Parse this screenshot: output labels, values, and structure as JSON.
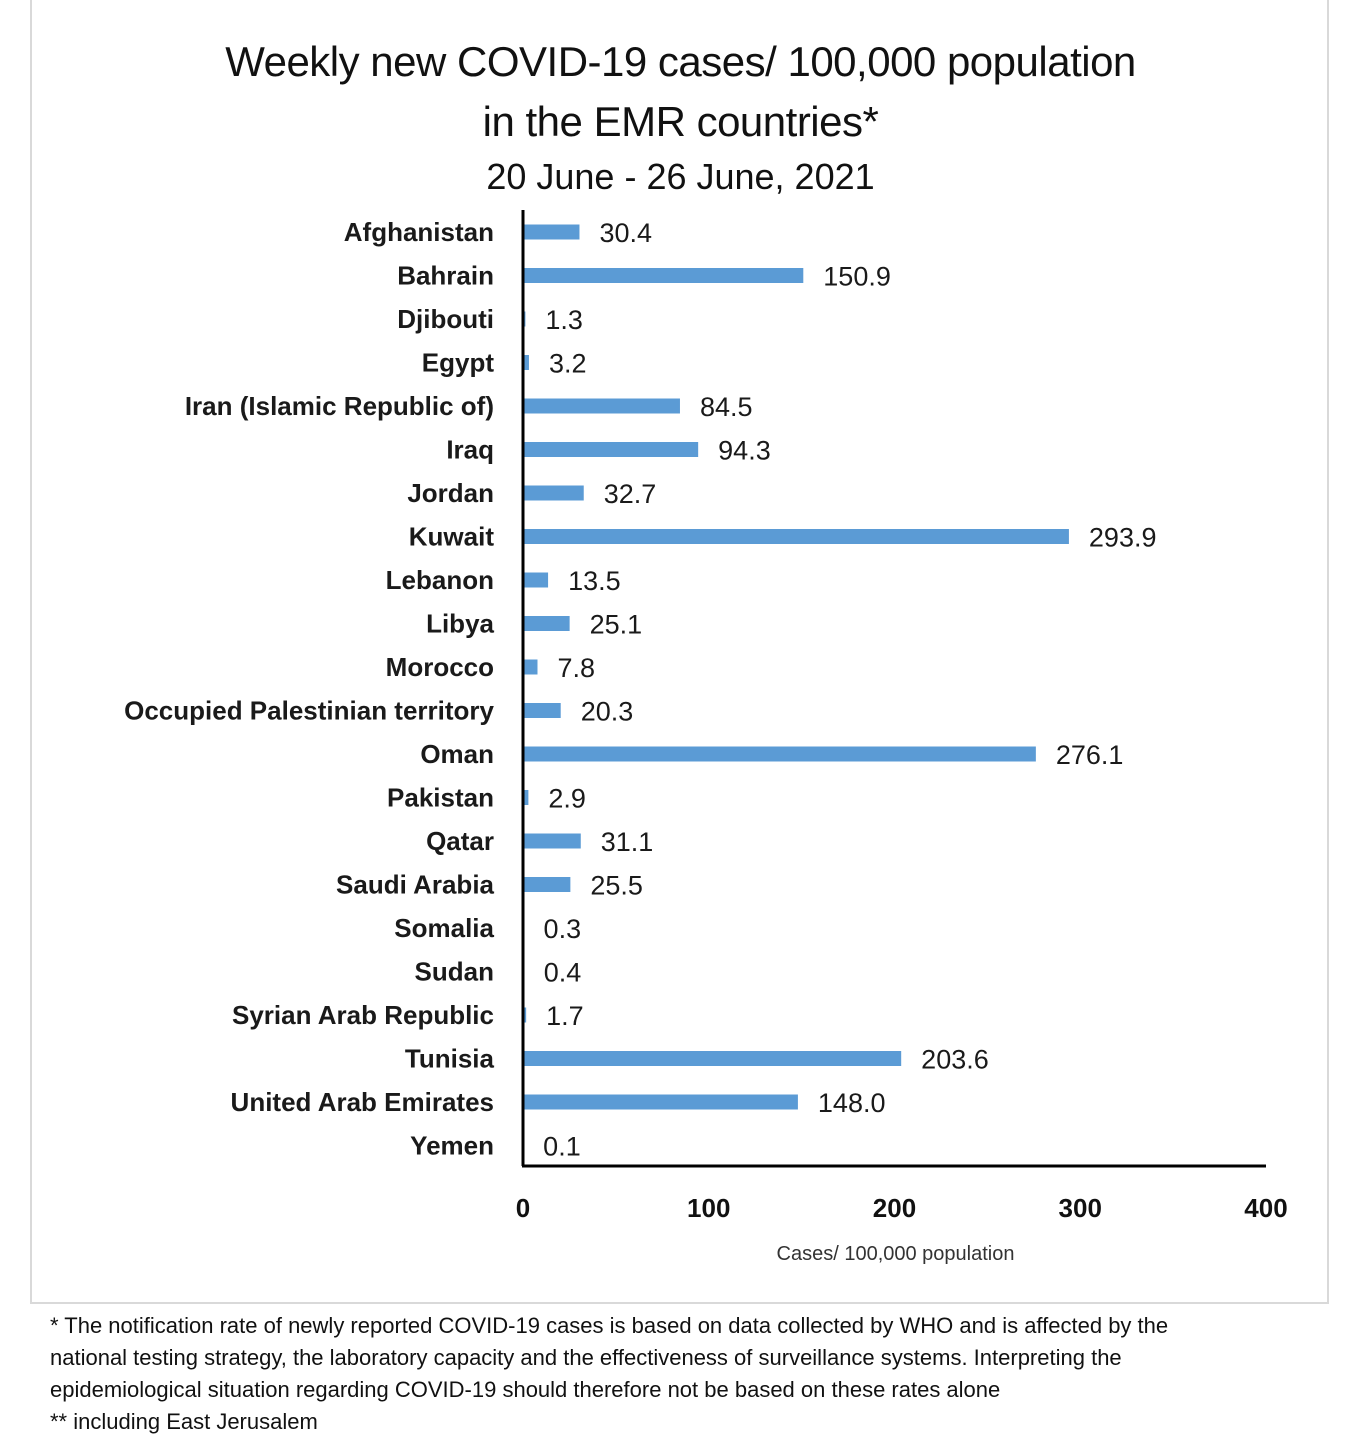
{
  "chart_data": {
    "type": "bar",
    "orientation": "horizontal",
    "title": "Weekly new COVID-19 cases/ 100,000 population",
    "title_line2": "in the EMR countries*",
    "subtitle": "20 June - 26 June, 2021",
    "xlabel": "Cases/ 100,000 population",
    "ylabel": "",
    "xlim": [
      0,
      400
    ],
    "xticks": [
      "0",
      "100",
      "200",
      "300",
      "400"
    ],
    "grid": false,
    "bar_color": "#5b9bd5",
    "categories": [
      "Afghanistan",
      "Bahrain",
      "Djibouti",
      "Egypt",
      "Iran (Islamic Republic of)",
      "Iraq",
      "Jordan",
      "Kuwait",
      "Lebanon",
      "Libya",
      "Morocco",
      "Occupied Palestinian territory",
      "Oman",
      "Pakistan",
      "Qatar",
      "Saudi Arabia",
      "Somalia",
      "Sudan",
      "Syrian Arab Republic",
      "Tunisia",
      "United Arab Emirates",
      "Yemen"
    ],
    "values": [
      30.4,
      150.9,
      1.3,
      3.2,
      84.5,
      94.3,
      32.7,
      293.9,
      13.5,
      25.1,
      7.8,
      20.3,
      276.1,
      2.9,
      31.1,
      25.5,
      0.3,
      0.4,
      1.7,
      203.6,
      148.0,
      0.1
    ],
    "value_labels": [
      "30.4",
      "150.9",
      "1.3",
      "3.2",
      "84.5",
      "94.3",
      "32.7",
      "293.9",
      "13.5",
      "25.1",
      "7.8",
      "20.3",
      "276.1",
      "2.9",
      "31.1",
      "25.5",
      "0.3",
      "0.4",
      "1.7",
      "203.6",
      "148.0",
      "0.1"
    ]
  },
  "footnotes": [
    "* The notification rate of newly reported COVID-19 cases is based on data collected by WHO and is affected by the",
    "national testing strategy, the laboratory capacity and the effectiveness of surveillance systems. Interpreting the",
    "epidemiological situation regarding COVID-19 should therefore not be based on these rates alone",
    "** including East Jerusalem"
  ]
}
